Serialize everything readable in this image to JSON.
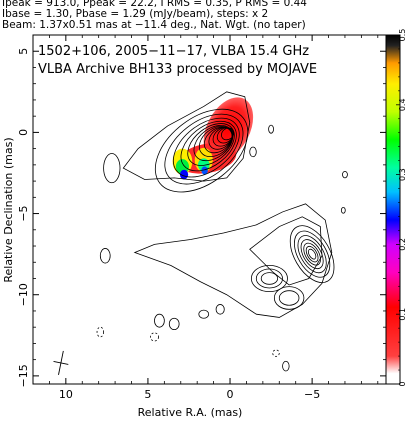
{
  "header": {
    "line1": "Ipeak = 913.0, Ppeak = 22.2, I RMS = 0.35, P RMS = 0.44",
    "line2": "Ibase = 1.30, Pbase = 1.29 (mJy/beam), steps: x 2",
    "line3": "Beam: 1.37x0.51 mas at −11.4 deg., Nat. Wgt. (no taper)"
  },
  "plot": {
    "title_line1": "1502+106, 2005−11−17, VLBA 15.4 GHz",
    "title_line2": "VLBA Archive BH133 processed by MOJAVE"
  },
  "colorbar": {
    "ticks": [
      "0",
      "0.1",
      "0.2",
      "0.3",
      "0.4",
      "0.5"
    ],
    "tick_values": [
      0,
      0.1,
      0.2,
      0.3,
      0.4,
      0.5
    ],
    "range": [
      0,
      0.5
    ],
    "colors": [
      "#ffffff",
      "#ff0000",
      "#ff00ff",
      "#0000ff",
      "#00ffff",
      "#00ff00",
      "#ffff00",
      "#ff8800",
      "#000000"
    ]
  },
  "chart_data": {
    "type": "contour",
    "xlabel": "Relative R.A. (mas)",
    "ylabel": "Relative Declination (mas)",
    "xlim": [
      12,
      -9.5
    ],
    "ylim": [
      -15.5,
      6
    ],
    "x_ticks": [
      10,
      5,
      0,
      -5
    ],
    "x_tick_labels": [
      "10",
      "5",
      "0",
      "−5"
    ],
    "y_ticks": [
      5,
      0,
      -5,
      -10,
      -15
    ],
    "y_tick_labels": [
      "5",
      "0",
      "−5",
      "−10",
      "−15"
    ],
    "intensity_peak_mJy_per_beam": 913.0,
    "polarized_peak_mJy_per_beam": 22.2,
    "core": {
      "x": 0,
      "y": 0
    },
    "jet_component": {
      "x": -5,
      "y": -7.5
    },
    "beam": {
      "major_mas": 1.37,
      "minor_mas": 0.51,
      "pa_deg": -11.4
    }
  }
}
